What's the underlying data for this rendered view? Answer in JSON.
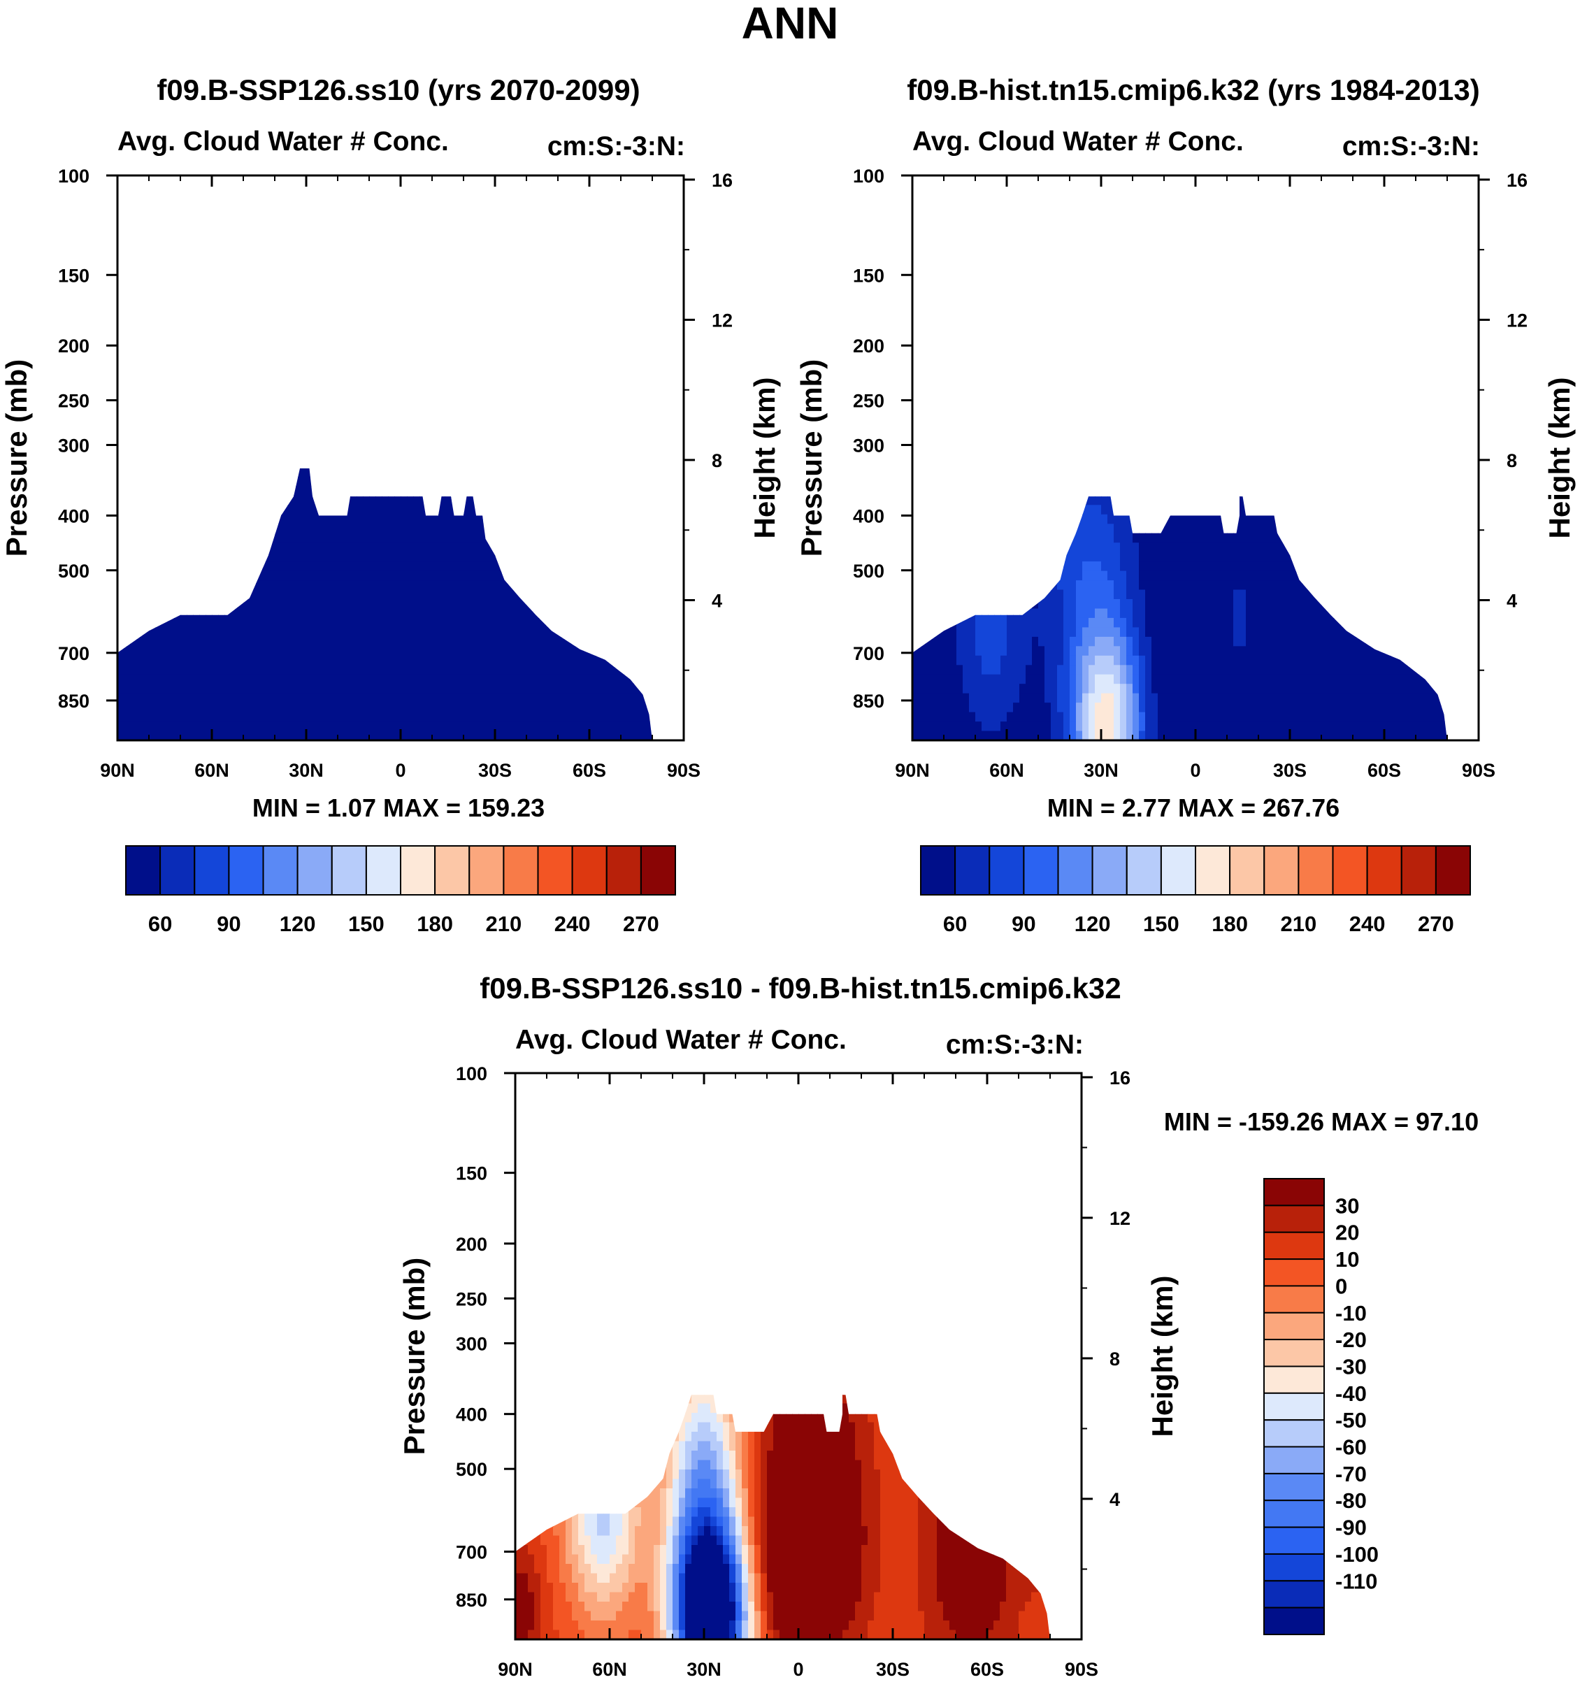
{
  "figure_title": "ANN",
  "colors": {
    "abs_palette": [
      "#000f8a",
      "#0a2cb8",
      "#1446d9",
      "#2b63f2",
      "#5a89f5",
      "#8aaaf7",
      "#b7ccfa",
      "#dde9fc",
      "#fde8d8",
      "#fcc7a7",
      "#fba77d",
      "#f87b48",
      "#f35524",
      "#dd3810",
      "#b8210a",
      "#8a0505"
    ],
    "diff_palette": [
      "#000f8a",
      "#0a2cb8",
      "#1446d9",
      "#2b63f2",
      "#4378f3",
      "#5a89f5",
      "#8aaaf7",
      "#b7ccfa",
      "#dde9fc",
      "#fde8d8",
      "#fcc7a7",
      "#fba77d",
      "#f87b48",
      "#f35524",
      "#dd3810",
      "#b8210a",
      "#8a0505"
    ],
    "frame": "#000000",
    "background": "#ffffff"
  },
  "chart_data": [
    {
      "id": "panel-ssp126",
      "type": "contour",
      "title": "f09.B-SSP126.ss10 (yrs 2070-2099)",
      "subtitle_left": "Avg. Cloud Water # Conc.",
      "subtitle_right": "cm:S:-3:N:",
      "ylabel": "Pressure (mb)",
      "y2label": "Height (km)",
      "x_tick_labels": [
        "90N",
        "60N",
        "30N",
        "0",
        "30S",
        "60S",
        "90S"
      ],
      "x_tick_values": [
        90,
        60,
        30,
        0,
        -30,
        -60,
        -90
      ],
      "x_range": [
        90,
        -90
      ],
      "y_tick_labels": [
        "100",
        "150",
        "200",
        "250",
        "300",
        "400",
        "500",
        "700",
        "850"
      ],
      "y_tick_values": [
        100,
        150,
        200,
        250,
        300,
        400,
        500,
        700,
        850
      ],
      "y_range_mb": [
        100,
        1000
      ],
      "height_tick_labels": [
        "16",
        "12",
        "8",
        "4"
      ],
      "height_tick_values_km": [
        16,
        12,
        8,
        4
      ],
      "stats_text": "MIN =   1.07  MAX = 159.23",
      "min": 1.07,
      "max": 159.23,
      "colorbar_labels": [
        "60",
        "90",
        "120",
        "150",
        "180",
        "210",
        "240",
        "270"
      ],
      "colorbar_levels": [
        45,
        60,
        75,
        90,
        105,
        120,
        135,
        150,
        165,
        180,
        195,
        210,
        225,
        240,
        255,
        270
      ],
      "colorbar_orientation": "horizontal",
      "field": "ssp",
      "cloud_top_profile": [
        [
          90,
          700
        ],
        [
          80,
          640
        ],
        [
          70,
          600
        ],
        [
          55,
          600
        ],
        [
          48,
          560
        ],
        [
          42,
          470
        ],
        [
          38,
          400
        ],
        [
          34,
          370
        ],
        [
          32,
          330
        ],
        [
          29,
          330
        ],
        [
          28,
          370
        ],
        [
          26,
          400
        ],
        [
          17,
          400
        ],
        [
          16,
          370
        ],
        [
          4,
          370
        ],
        [
          -7,
          370
        ],
        [
          -8,
          400
        ],
        [
          -12,
          400
        ],
        [
          -13,
          370
        ],
        [
          -16,
          370
        ],
        [
          -17,
          400
        ],
        [
          -20,
          400
        ],
        [
          -21,
          370
        ],
        [
          -23,
          370
        ],
        [
          -24,
          400
        ],
        [
          -26,
          400
        ],
        [
          -27,
          440
        ],
        [
          -30,
          470
        ],
        [
          -33,
          520
        ],
        [
          -38,
          560
        ],
        [
          -43,
          600
        ],
        [
          -48,
          640
        ],
        [
          -57,
          690
        ],
        [
          -65,
          720
        ],
        [
          -73,
          780
        ],
        [
          -77,
          830
        ],
        [
          -79,
          900
        ],
        [
          -80,
          1000
        ],
        [
          90,
          1000
        ]
      ]
    },
    {
      "id": "panel-hist",
      "type": "contour",
      "title": "f09.B-hist.tn15.cmip6.k32 (yrs 1984-2013)",
      "subtitle_left": "Avg. Cloud Water # Conc.",
      "subtitle_right": "cm:S:-3:N:",
      "ylabel": "Pressure (mb)",
      "y2label": "Height (km)",
      "x_tick_labels": [
        "90N",
        "60N",
        "30N",
        "0",
        "30S",
        "60S",
        "90S"
      ],
      "x_tick_values": [
        90,
        60,
        30,
        0,
        -30,
        -60,
        -90
      ],
      "x_range": [
        90,
        -90
      ],
      "y_tick_labels": [
        "100",
        "150",
        "200",
        "250",
        "300",
        "400",
        "500",
        "700",
        "850"
      ],
      "y_tick_values": [
        100,
        150,
        200,
        250,
        300,
        400,
        500,
        700,
        850
      ],
      "y_range_mb": [
        100,
        1000
      ],
      "height_tick_labels": [
        "16",
        "12",
        "8",
        "4"
      ],
      "height_tick_values_km": [
        16,
        12,
        8,
        4
      ],
      "stats_text": "MIN =   2.77  MAX = 267.76",
      "min": 2.77,
      "max": 267.76,
      "colorbar_labels": [
        "60",
        "90",
        "120",
        "150",
        "180",
        "210",
        "240",
        "270"
      ],
      "colorbar_levels": [
        45,
        60,
        75,
        90,
        105,
        120,
        135,
        150,
        165,
        180,
        195,
        210,
        225,
        240,
        255,
        270
      ],
      "colorbar_orientation": "horizontal",
      "field": "hist",
      "cloud_top_profile": [
        [
          90,
          700
        ],
        [
          80,
          640
        ],
        [
          70,
          600
        ],
        [
          55,
          600
        ],
        [
          48,
          560
        ],
        [
          43,
          520
        ],
        [
          41,
          470
        ],
        [
          38,
          430
        ],
        [
          36,
          400
        ],
        [
          34,
          370
        ],
        [
          27,
          370
        ],
        [
          26,
          400
        ],
        [
          21,
          400
        ],
        [
          20,
          430
        ],
        [
          11,
          430
        ],
        [
          8,
          400
        ],
        [
          -8,
          400
        ],
        [
          -9,
          430
        ],
        [
          -13,
          430
        ],
        [
          -14,
          400
        ],
        [
          -14,
          370
        ],
        [
          -15,
          370
        ],
        [
          -16,
          400
        ],
        [
          -25,
          400
        ],
        [
          -26,
          430
        ],
        [
          -30,
          470
        ],
        [
          -33,
          520
        ],
        [
          -38,
          560
        ],
        [
          -43,
          600
        ],
        [
          -48,
          640
        ],
        [
          -57,
          690
        ],
        [
          -65,
          720
        ],
        [
          -73,
          780
        ],
        [
          -77,
          830
        ],
        [
          -79,
          900
        ],
        [
          -80,
          1000
        ],
        [
          90,
          1000
        ]
      ]
    },
    {
      "id": "panel-diff",
      "type": "contour",
      "title": "f09.B-SSP126.ss10 - f09.B-hist.tn15.cmip6.k32",
      "subtitle_left": "Avg. Cloud Water # Conc.",
      "subtitle_right": "cm:S:-3:N:",
      "ylabel": "Pressure (mb)",
      "y2label": "Height (km)",
      "x_tick_labels": [
        "90N",
        "60N",
        "30N",
        "0",
        "30S",
        "60S",
        "90S"
      ],
      "x_tick_values": [
        90,
        60,
        30,
        0,
        -30,
        -60,
        -90
      ],
      "x_range": [
        90,
        -90
      ],
      "y_tick_labels": [
        "100",
        "150",
        "200",
        "250",
        "300",
        "400",
        "500",
        "700",
        "850"
      ],
      "y_tick_values": [
        100,
        150,
        200,
        250,
        300,
        400,
        500,
        700,
        850
      ],
      "y_range_mb": [
        100,
        1000
      ],
      "height_tick_labels": [
        "16",
        "12",
        "8",
        "4"
      ],
      "height_tick_values_km": [
        16,
        12,
        8,
        4
      ],
      "stats_text": "MIN = -159.26  MAX =  97.10",
      "min": -159.26,
      "max": 97.1,
      "colorbar_labels": [
        "30",
        "20",
        "10",
        "0",
        "-10",
        "-20",
        "-30",
        "-40",
        "-50",
        "-60",
        "-70",
        "-80",
        "-90",
        "-100",
        "-110"
      ],
      "colorbar_orientation": "vertical",
      "field": "diff",
      "cloud_top_profile": [
        [
          90,
          700
        ],
        [
          80,
          640
        ],
        [
          70,
          600
        ],
        [
          55,
          600
        ],
        [
          48,
          560
        ],
        [
          43,
          520
        ],
        [
          41,
          470
        ],
        [
          38,
          430
        ],
        [
          36,
          400
        ],
        [
          34,
          370
        ],
        [
          27,
          370
        ],
        [
          26,
          400
        ],
        [
          21,
          400
        ],
        [
          20,
          430
        ],
        [
          11,
          430
        ],
        [
          8,
          400
        ],
        [
          -8,
          400
        ],
        [
          -9,
          430
        ],
        [
          -13,
          430
        ],
        [
          -14,
          400
        ],
        [
          -14,
          370
        ],
        [
          -15,
          370
        ],
        [
          -16,
          400
        ],
        [
          -25,
          400
        ],
        [
          -26,
          430
        ],
        [
          -30,
          470
        ],
        [
          -33,
          520
        ],
        [
          -38,
          560
        ],
        [
          -43,
          600
        ],
        [
          -48,
          640
        ],
        [
          -57,
          690
        ],
        [
          -65,
          720
        ],
        [
          -73,
          780
        ],
        [
          -77,
          830
        ],
        [
          -79,
          900
        ],
        [
          -80,
          1000
        ],
        [
          90,
          1000
        ]
      ]
    }
  ]
}
